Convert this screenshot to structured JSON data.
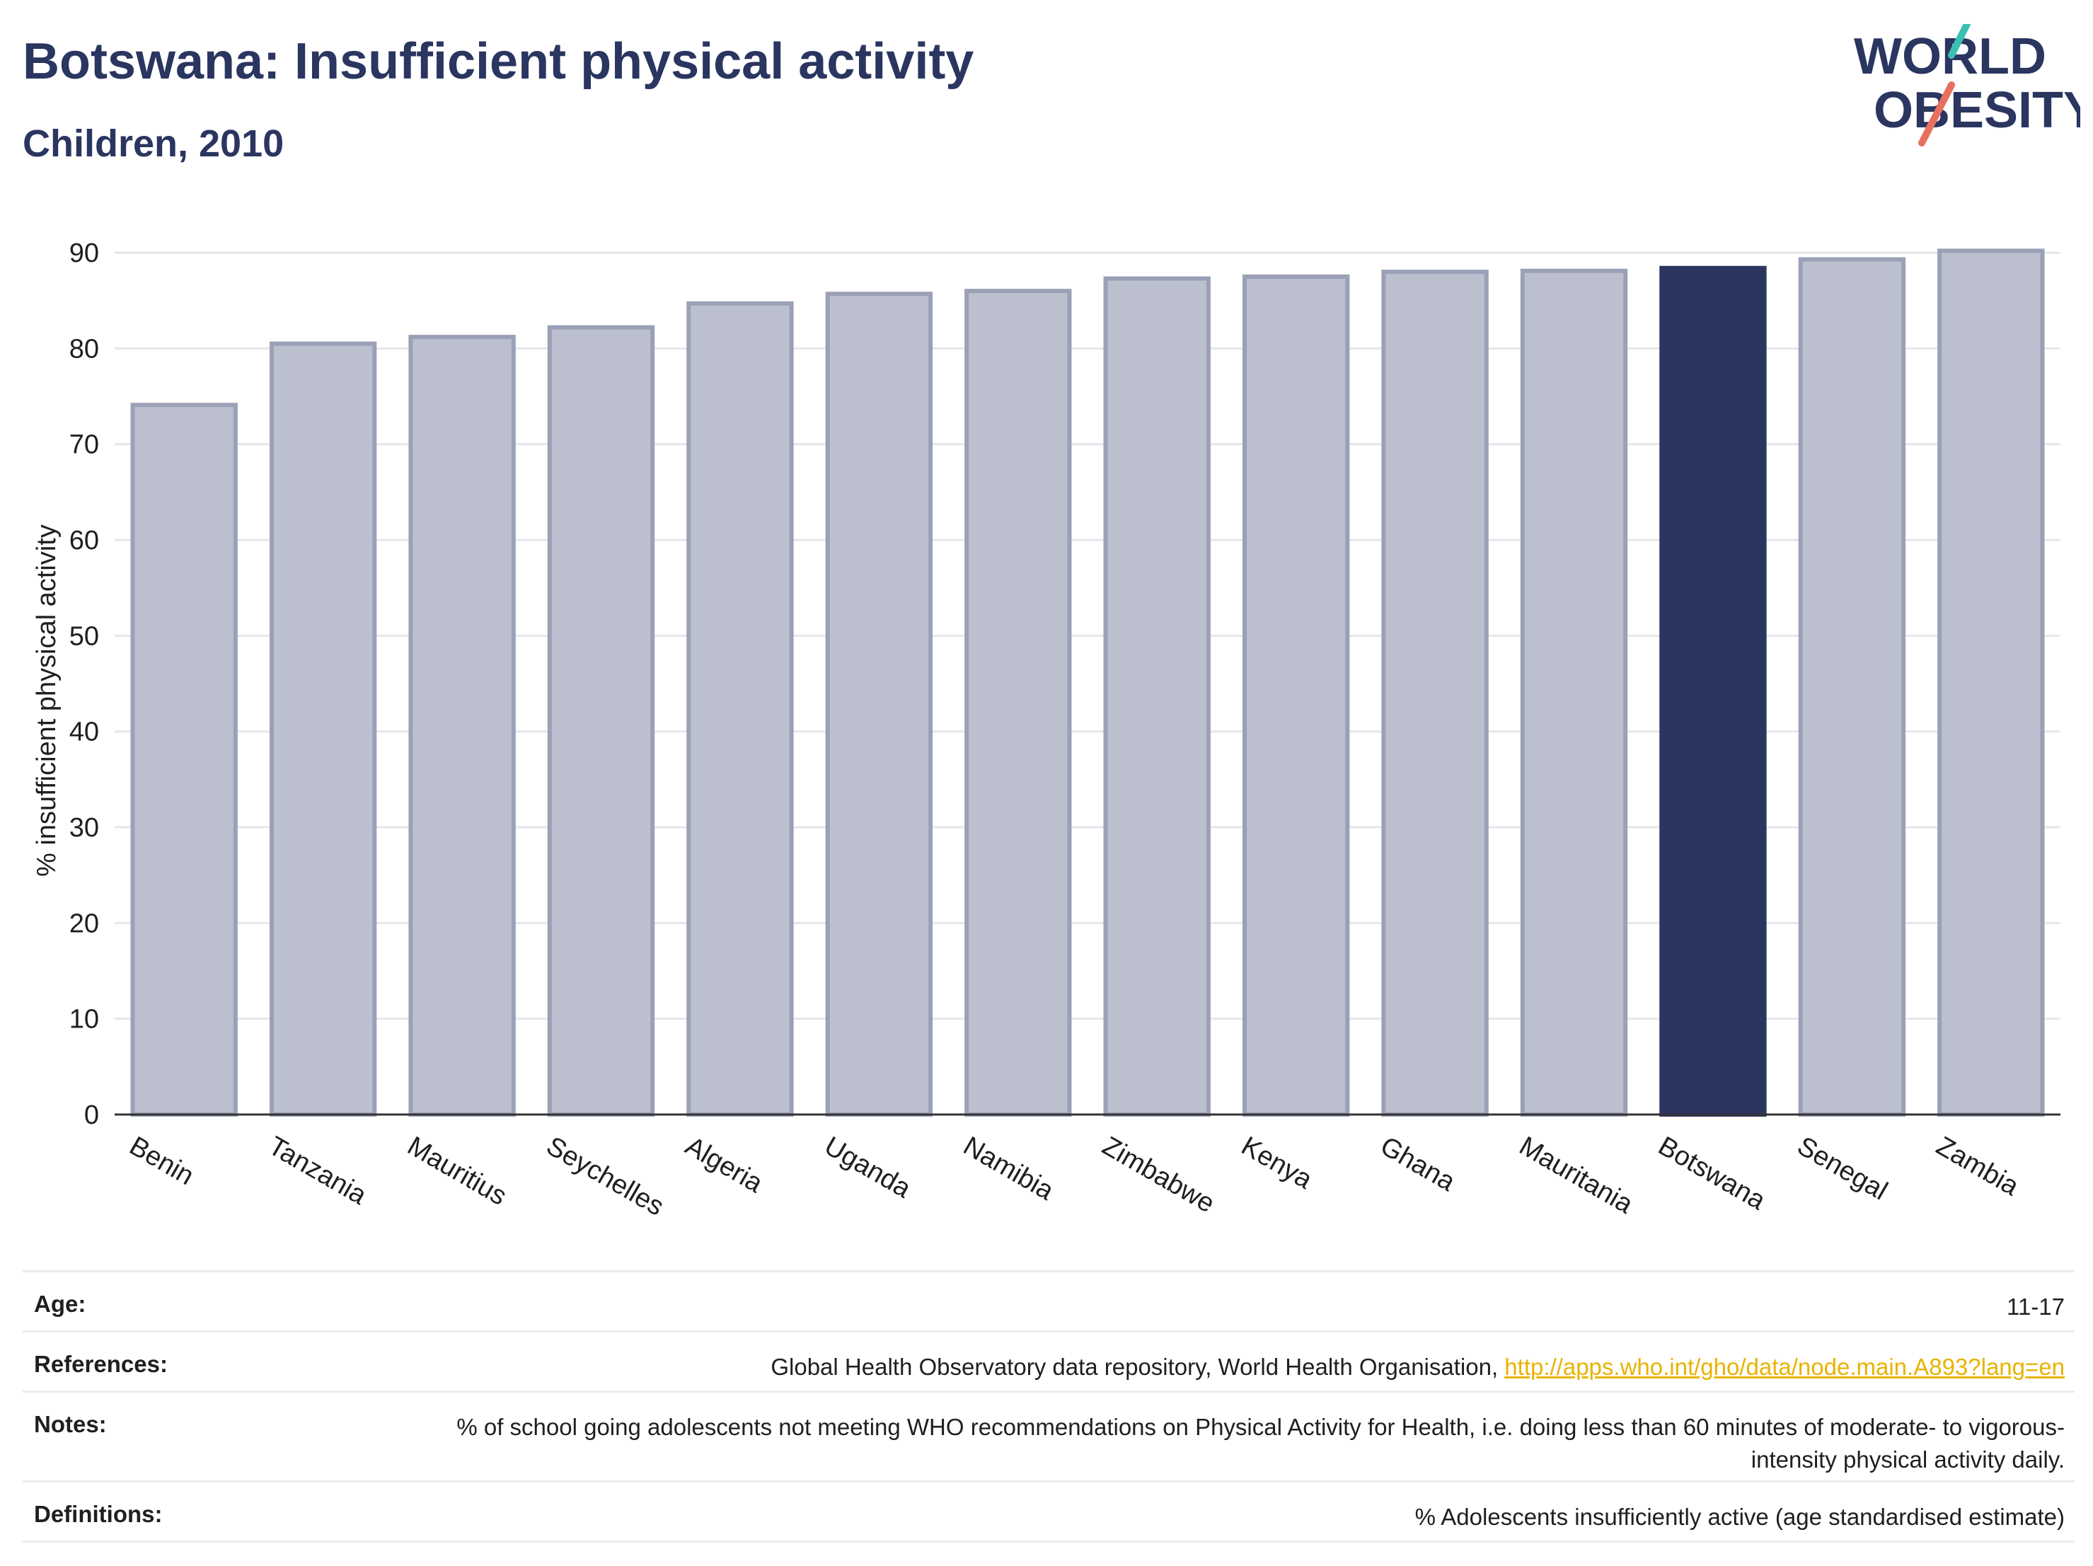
{
  "header": {
    "title": "Botswana: Insufficient physical activity",
    "subtitle": "Children, 2010"
  },
  "logo": {
    "line1": "WORLD",
    "line2": "OBESITY",
    "colors": {
      "navy": "#2a3560",
      "teal": "#3cbfb3",
      "coral": "#e8705e"
    }
  },
  "chart_data": {
    "type": "bar",
    "ylabel": "% insufficient physical activity",
    "xlabel": "",
    "ylim": [
      0,
      92
    ],
    "yticks": [
      0,
      10,
      20,
      30,
      40,
      50,
      60,
      70,
      80,
      90
    ],
    "grid": true,
    "categories": [
      "Benin",
      "Tanzania",
      "Mauritius",
      "Seychelles",
      "Algeria",
      "Uganda",
      "Namibia",
      "Zimbabwe",
      "Kenya",
      "Ghana",
      "Mauritania",
      "Botswana",
      "Senegal",
      "Zambia"
    ],
    "values": [
      74.1,
      80.5,
      81.2,
      82.2,
      84.7,
      85.7,
      86.0,
      87.3,
      87.5,
      88.0,
      88.1,
      88.4,
      89.3,
      90.2
    ],
    "highlight": "Botswana",
    "colors": {
      "bar": "#bcc0ce",
      "bar_edge": "#9aa0b6",
      "highlight": "#2a3560"
    }
  },
  "meta": {
    "age_label": "Age:",
    "age_value": "11-17",
    "references_label": "References:",
    "references_text": "Global Health Observatory data repository, World Health Organisation, ",
    "references_link": "http://apps.who.int/gho/data/node.main.A893?lang=en",
    "notes_label": "Notes:",
    "notes_value": "% of school going adolescents not meeting WHO recommendations on Physical Activity for Health, i.e. doing less than 60 minutes of moderate- to vigorous-intensity physical activity daily.",
    "definitions_label": "Definitions:",
    "definitions_value": "% Adolescents insufficiently active (age standardised estimate)"
  }
}
